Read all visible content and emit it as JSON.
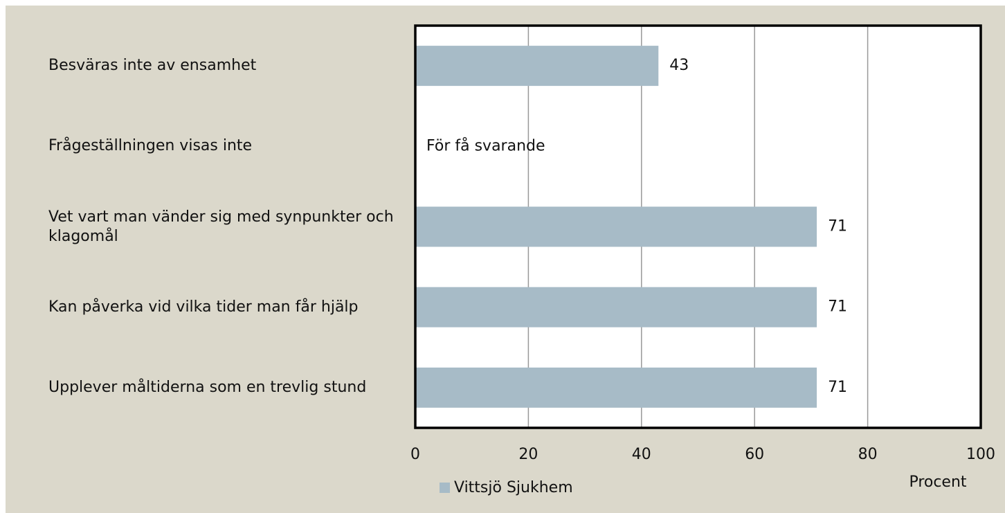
{
  "chart_data": {
    "type": "bar",
    "orientation": "horizontal",
    "categories": [
      "Besväras inte av ensamhet",
      "Frågeställningen visas inte",
      "Vet vart man vänder sig med synpunkter och klagomål",
      "Kan påverka vid vilka tider man får hjälp",
      "Upplever måltiderna som en trevlig stund"
    ],
    "series": [
      {
        "name": "Vittsjö Sjukhem",
        "color": "#a7bbc7",
        "values": [
          43,
          null,
          71,
          71,
          71
        ]
      }
    ],
    "annotations": [
      "För få svarande"
    ],
    "xlabel": "Procent",
    "xlim": [
      0,
      100
    ],
    "xticks": [
      0,
      20,
      40,
      60,
      80,
      100
    ],
    "grid": true
  }
}
